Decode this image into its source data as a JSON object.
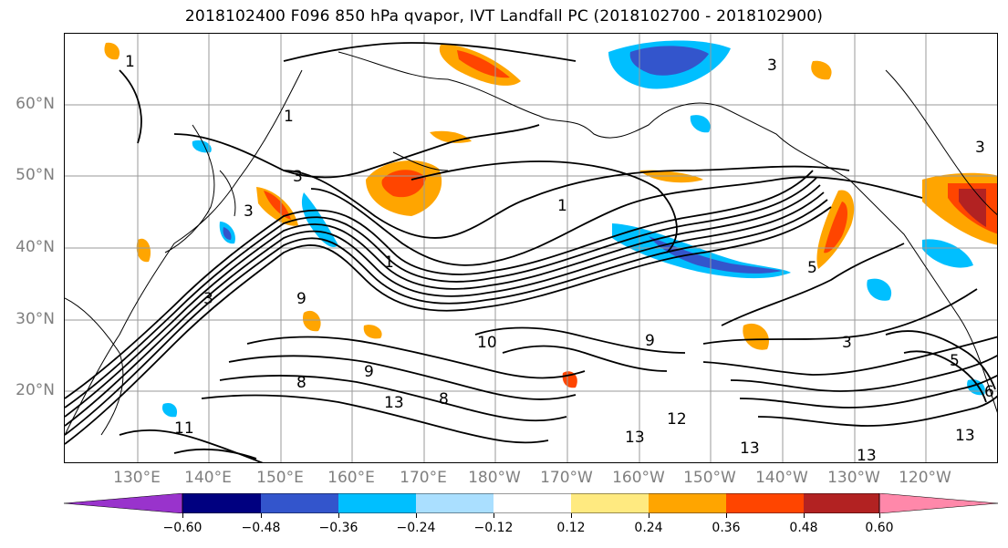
{
  "title": "2018102400 F096 850 hPa qvapor, IVT Landfall PC (2018102700 - 2018102900)",
  "lat_labels": [
    "60°N",
    "50°N",
    "40°N",
    "30°N",
    "20°N"
  ],
  "lon_labels": [
    "130°E",
    "140°E",
    "150°E",
    "160°E",
    "170°E",
    "180°W",
    "170°W",
    "160°W",
    "150°W",
    "140°W",
    "130°W",
    "120°W"
  ],
  "contour_labels": [
    "1",
    "1",
    "3",
    "3",
    "1",
    "3",
    "9",
    "1",
    "10",
    "9",
    "3",
    "5",
    "8",
    "9",
    "13",
    "8",
    "11",
    "13",
    "12",
    "13",
    "13",
    "13",
    "6",
    "5",
    "3",
    "3"
  ],
  "colorbar": {
    "colors": [
      "#9933cc",
      "#000080",
      "#3355cc",
      "#00bfff",
      "#aadfff",
      "#ffffff",
      "#ffea80",
      "#ffa500",
      "#ff4500",
      "#b22222",
      "#ff88aa"
    ],
    "tick_labels": [
      "−0.60",
      "−0.48",
      "−0.36",
      "−0.24",
      "−0.12",
      "0.12",
      "0.24",
      "0.36",
      "0.48",
      "0.60"
    ]
  }
}
